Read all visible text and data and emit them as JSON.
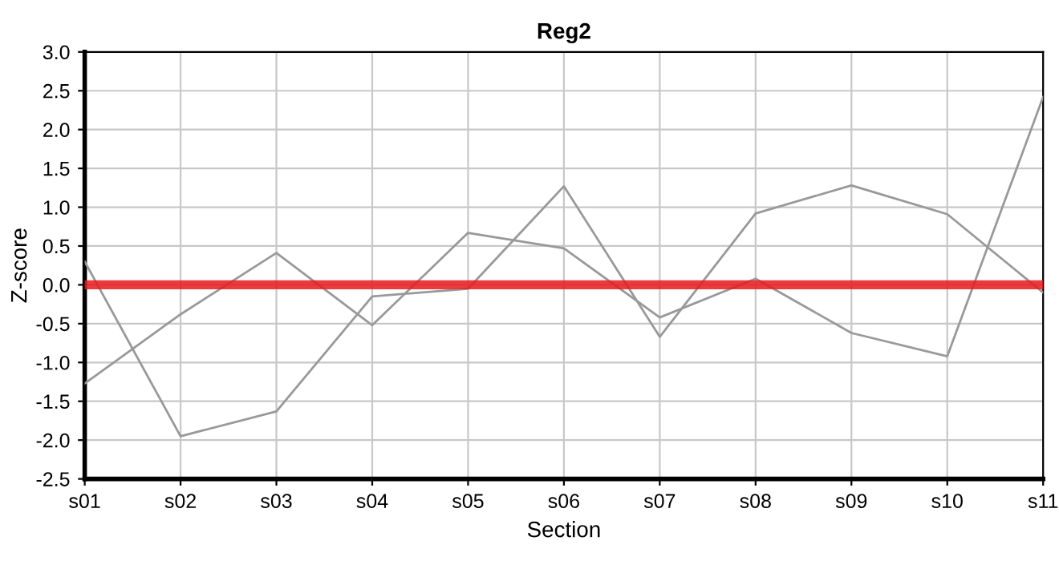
{
  "chart_data": {
    "type": "line",
    "title": "Reg2",
    "xlabel": "Section",
    "ylabel": "Z-score",
    "categories": [
      "s01",
      "s02",
      "s03",
      "s04",
      "s05",
      "s06",
      "s07",
      "s08",
      "s09",
      "s10",
      "s11"
    ],
    "series": [
      {
        "color": "#999999",
        "values": [
          0.3,
          -1.95,
          -1.63,
          -0.15,
          -0.05,
          1.27,
          -0.67,
          0.92,
          1.28,
          0.91,
          -0.1
        ]
      },
      {
        "color": "#999999",
        "values": [
          -1.27,
          -0.38,
          0.41,
          -0.52,
          0.67,
          0.47,
          -0.42,
          0.08,
          -0.62,
          -0.92,
          2.42
        ]
      }
    ],
    "ylim": [
      -2.5,
      3.0
    ],
    "yticks": [
      {
        "value": -2.5,
        "label": "-2.5"
      },
      {
        "value": -2.0,
        "label": "-2.0"
      },
      {
        "value": -1.5,
        "label": "-1.5"
      },
      {
        "value": -1.0,
        "label": "-1.0"
      },
      {
        "value": -0.5,
        "label": "-0.5"
      },
      {
        "value": 0,
        "label": "0.0"
      },
      {
        "value": 0.5,
        "label": "0.5"
      },
      {
        "value": 1.0,
        "label": "1.0"
      },
      {
        "value": 1.5,
        "label": "1.5"
      },
      {
        "value": 2.0,
        "label": "2.0"
      },
      {
        "value": 2.5,
        "label": "2.5"
      },
      {
        "value": 3.0,
        "label": "3.0"
      }
    ],
    "ref_lines": [
      {
        "axis": "y",
        "value": 0,
        "color": "#e8191d"
      }
    ],
    "grid": true,
    "legend": false,
    "marker": "none",
    "line_style": "solid"
  }
}
